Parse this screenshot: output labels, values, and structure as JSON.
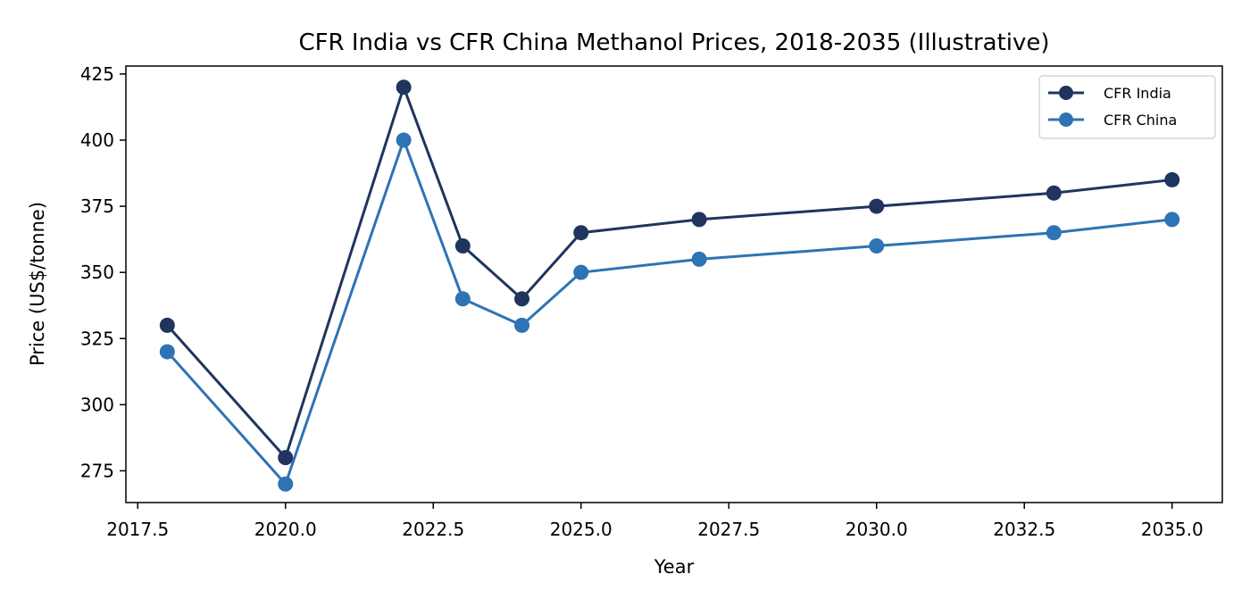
{
  "chart_data": {
    "type": "line",
    "title": "CFR India vs CFR China Methanol Prices, 2018-2035 (Illustrative)",
    "xlabel": "Year",
    "ylabel": "Price (US$/tonne)",
    "x": [
      2018,
      2020,
      2022,
      2023,
      2024,
      2025,
      2027,
      2030,
      2033,
      2035
    ],
    "series": [
      {
        "name": "CFR India",
        "color": "#1f355e",
        "values": [
          330,
          280,
          420,
          360,
          340,
          365,
          370,
          375,
          380,
          385
        ]
      },
      {
        "name": "CFR China",
        "color": "#2e73b4",
        "values": [
          320,
          270,
          400,
          340,
          330,
          350,
          355,
          360,
          365,
          370
        ]
      }
    ],
    "xlim": [
      2017.3,
      2035.85
    ],
    "ylim": [
      263,
      428
    ],
    "xticks": [
      "2017.5",
      "2020.0",
      "2022.5",
      "2025.0",
      "2027.5",
      "2030.0",
      "2032.5",
      "2035.0"
    ],
    "yticks": [
      "275",
      "300",
      "325",
      "350",
      "375",
      "400",
      "425"
    ],
    "grid": false,
    "legend": "top-right"
  }
}
